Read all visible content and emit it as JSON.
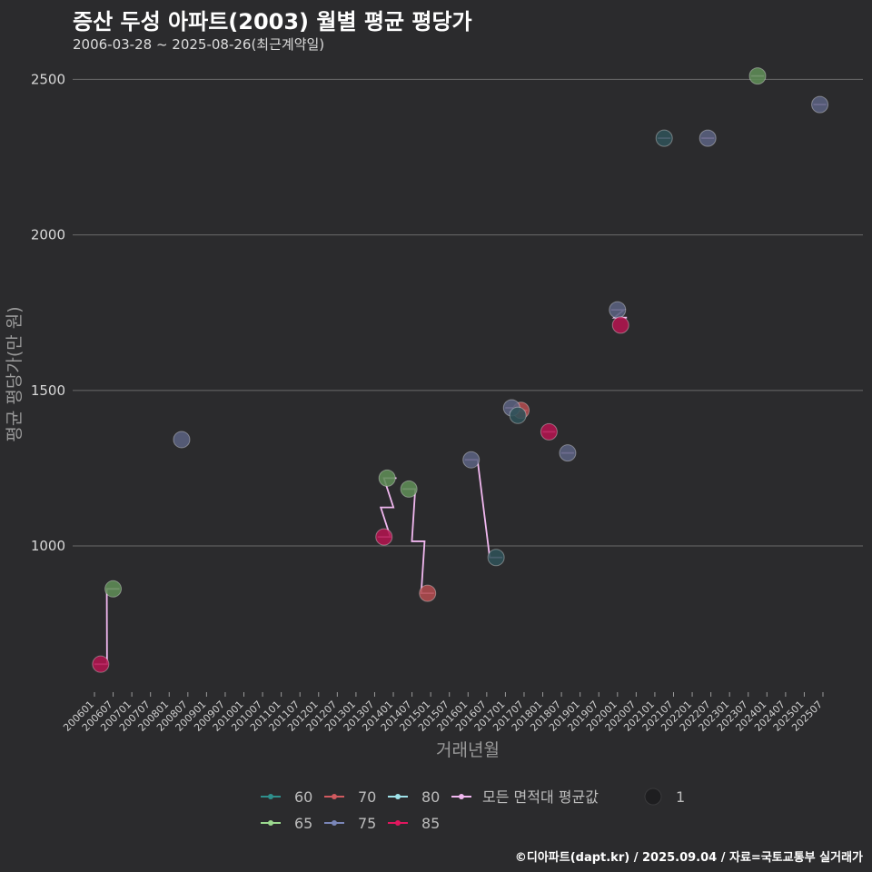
{
  "title": "증산 두성 아파트(2003) 월별 평균 평당가",
  "subtitle": "2006-03-28 ~ 2025-08-26(최근계약일)",
  "caption": "©디아파트(dapt.kr) / 2025.09.04 / 자료=국토교통부 실거래가",
  "colors": {
    "background": "#2b2b2d",
    "grid": "#6b6b6b",
    "avg_line": "#f1b8f0",
    "s60": "#2e7d7c",
    "s65": "#5e8c57",
    "s70": "#b04b4f",
    "s75": "#5a617f",
    "s80": "#2f5158",
    "s85": "#b0144f"
  },
  "chart_data": {
    "type": "scatter",
    "xlabel": "거래년월",
    "ylabel": "평균 평당가(만 원)",
    "ylim": [
      530,
      2580
    ],
    "y_ticks": [
      1000,
      1500,
      2000,
      2500
    ],
    "x_ticks": [
      "200601",
      "200607",
      "200701",
      "200707",
      "200801",
      "200807",
      "200901",
      "200907",
      "201001",
      "201007",
      "201101",
      "201107",
      "201201",
      "201207",
      "201301",
      "201307",
      "201401",
      "201407",
      "201501",
      "201507",
      "201601",
      "201607",
      "201701",
      "201707",
      "201801",
      "201807",
      "201901",
      "201907",
      "202001",
      "202007",
      "202101",
      "202107",
      "202201",
      "202207",
      "202301",
      "202307",
      "202401",
      "202407",
      "202501",
      "202507"
    ],
    "grid": true,
    "legend_position": "bottom",
    "legend": {
      "areas": [
        "60",
        "65",
        "70",
        "75",
        "80",
        "85"
      ],
      "avg_label": "모든 면적대 평균값",
      "size_label": "1"
    },
    "series": [
      {
        "name": "60",
        "color_key": "s60",
        "points": []
      },
      {
        "name": "65",
        "color_key": "s65",
        "points": [
          [
            "2006-07",
            862
          ],
          [
            "2013-11",
            1218
          ],
          [
            "2014-06",
            1183
          ],
          [
            "2023-10",
            2511
          ]
        ]
      },
      {
        "name": "70",
        "color_key": "s70",
        "points": [
          [
            "2014-12",
            848
          ],
          [
            "2017-06",
            1436
          ]
        ]
      },
      {
        "name": "75",
        "color_key": "s75",
        "points": [
          [
            "2008-05",
            1342
          ],
          [
            "2016-02",
            1277
          ],
          [
            "2017-03",
            1444
          ],
          [
            "2018-09",
            1299
          ],
          [
            "2020-01",
            1759
          ],
          [
            "2022-06",
            2311
          ],
          [
            "2025-06",
            2419
          ]
        ]
      },
      {
        "name": "80",
        "color_key": "s80",
        "points": [
          [
            "2016-10",
            963
          ],
          [
            "2017-05",
            1420
          ],
          [
            "2021-04",
            2311
          ]
        ]
      },
      {
        "name": "85",
        "color_key": "s85",
        "points": [
          [
            "2006-03",
            620
          ],
          [
            "2013-10",
            1029
          ],
          [
            "2018-03",
            1367
          ],
          [
            "2020-02",
            1710
          ]
        ]
      }
    ],
    "avg_segments": [
      [
        [
          "2006-03",
          620
        ],
        [
          "2006-07",
          862
        ]
      ],
      [
        [
          "2013-10",
          1029
        ],
        [
          "2013-11",
          1124
        ],
        [
          "2013-12",
          1218
        ]
      ],
      [
        [
          "2014-06",
          1183
        ],
        [
          "2014-09",
          1015
        ],
        [
          "2014-12",
          848
        ]
      ],
      [
        [
          "2016-02",
          1277
        ],
        [
          "2016-10",
          963
        ]
      ],
      [
        [
          "2017-03",
          1444
        ],
        [
          "2017-05",
          1432
        ],
        [
          "2017-06",
          1436
        ]
      ],
      [
        [
          "2018-03",
          1367
        ]
      ],
      [
        [
          "2018-09",
          1299
        ]
      ],
      [
        [
          "2020-01",
          1759
        ],
        [
          "2020-02",
          1734
        ]
      ],
      [
        [
          "2021-04",
          2311
        ]
      ],
      [
        [
          "2022-06",
          2311
        ]
      ],
      [
        [
          "2023-10",
          2511
        ]
      ],
      [
        [
          "2025-06",
          2419
        ]
      ]
    ]
  }
}
